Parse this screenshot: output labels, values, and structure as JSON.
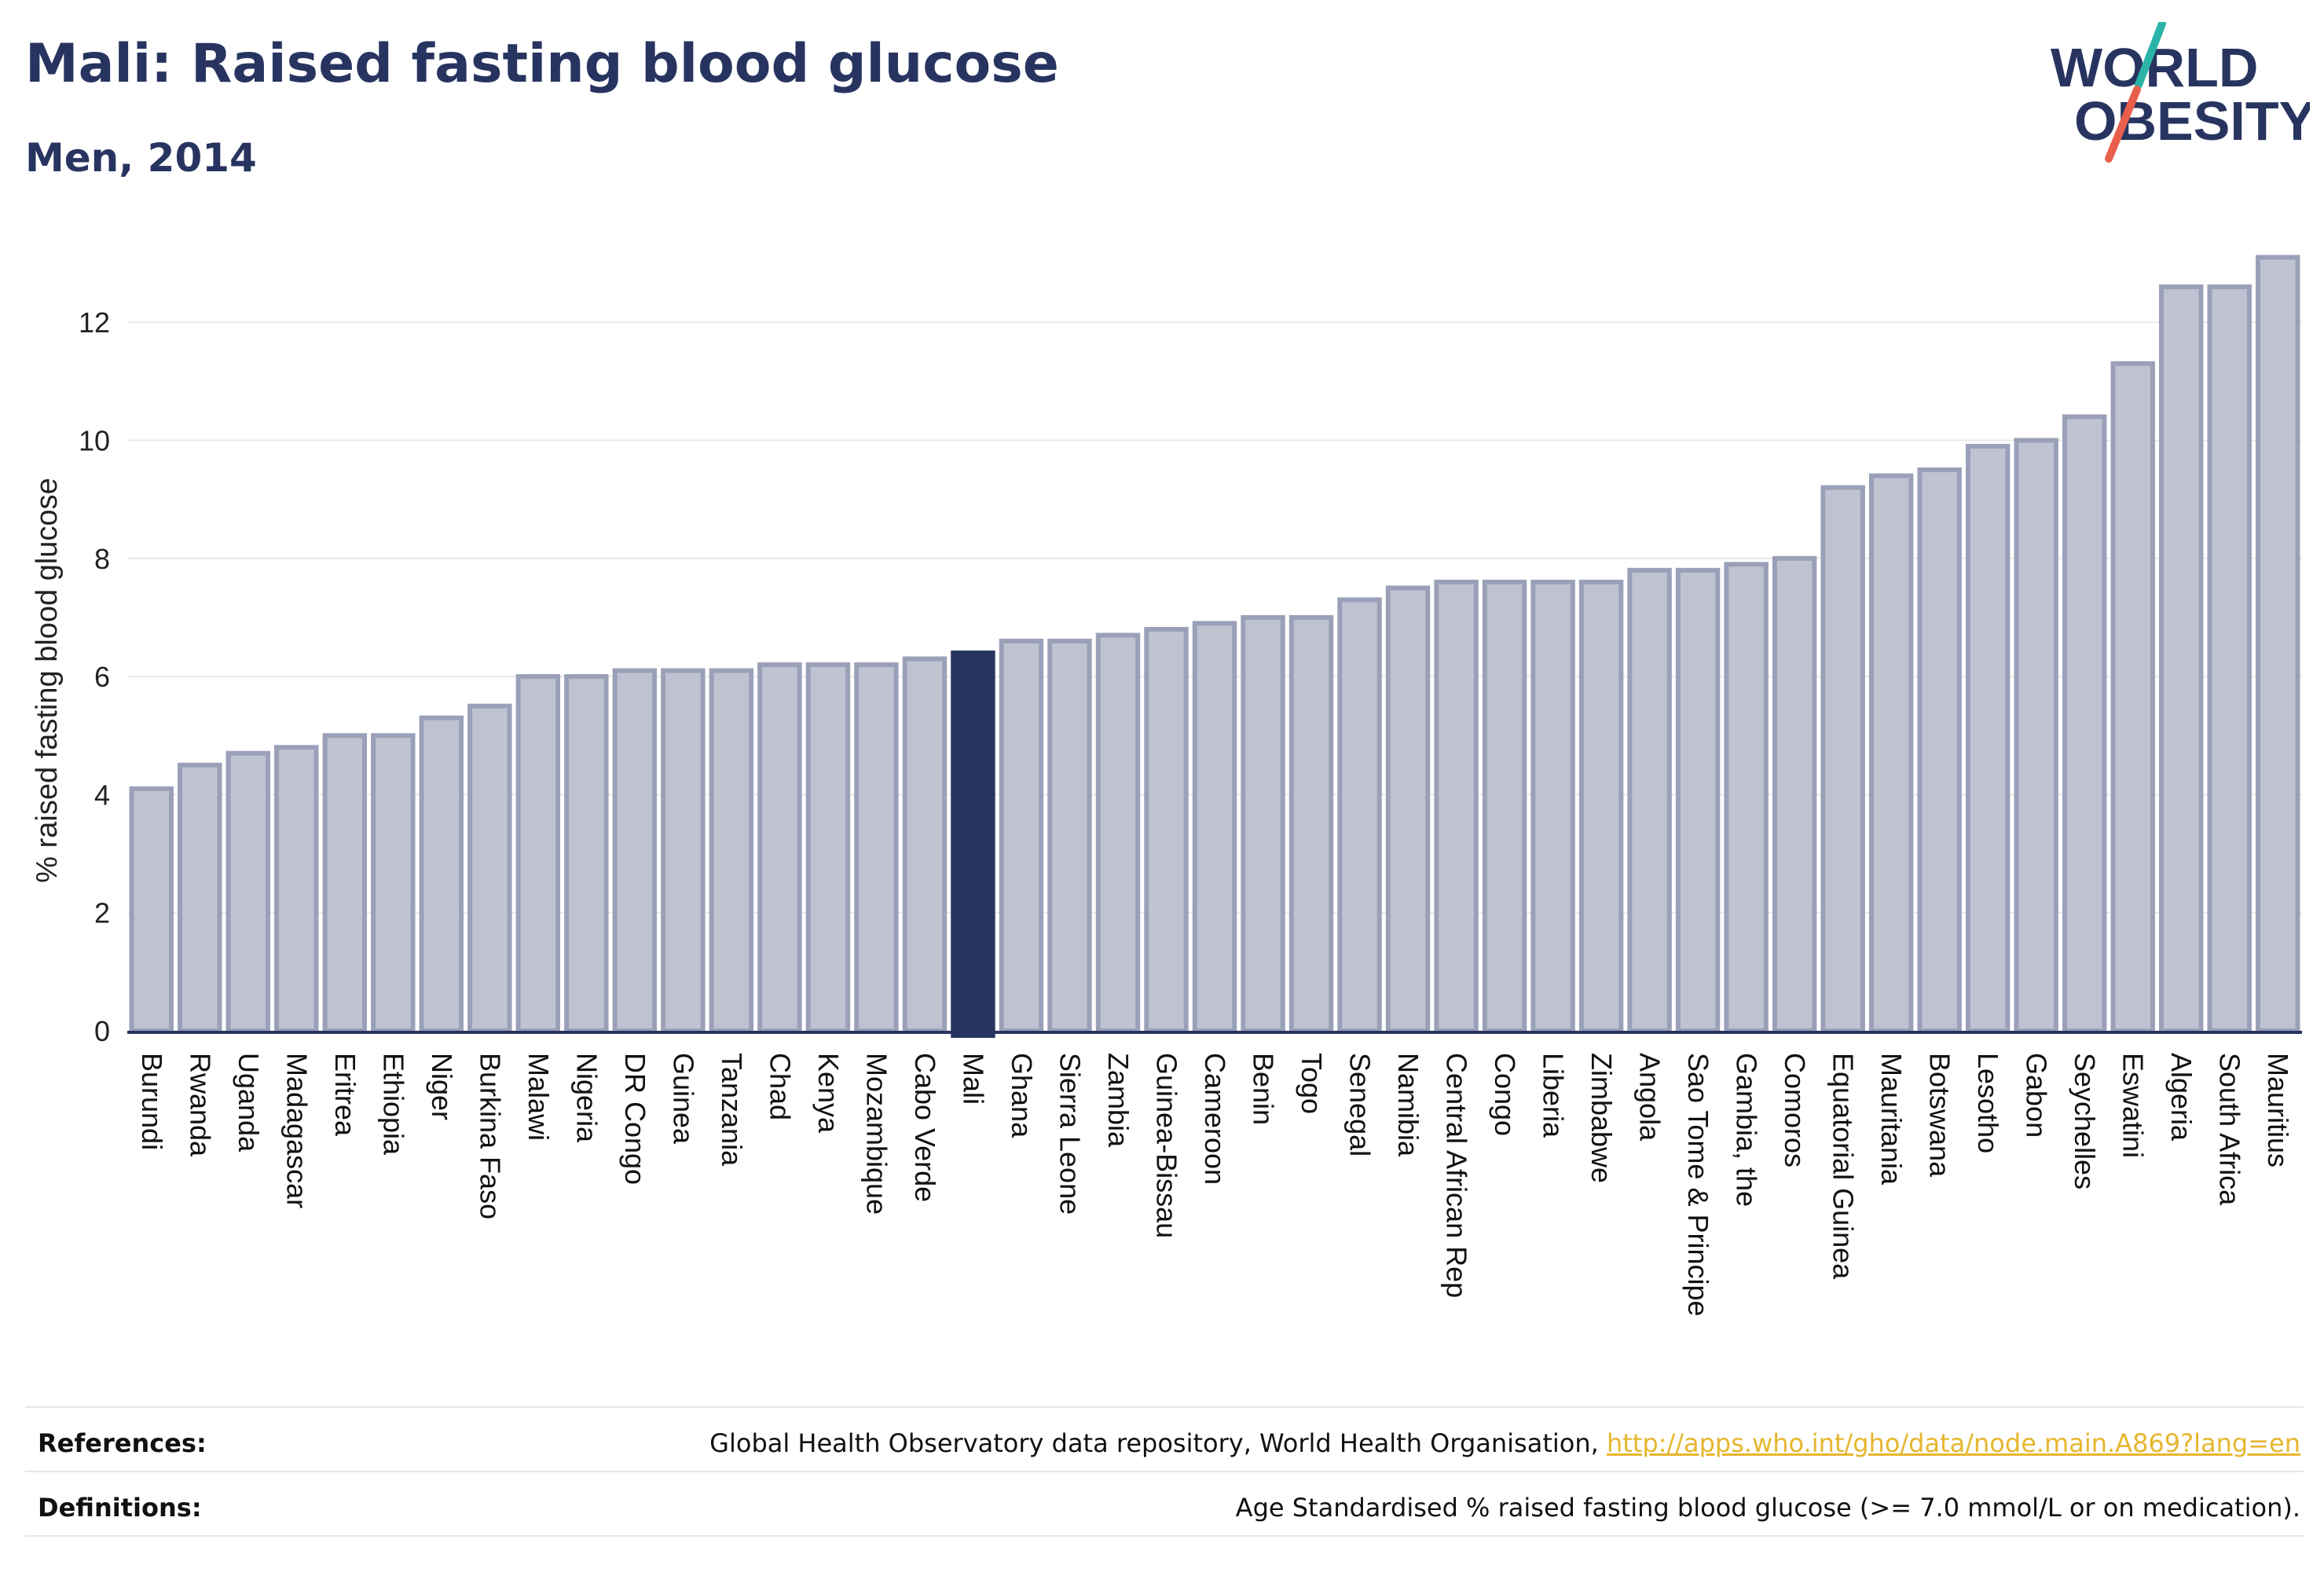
{
  "header": {
    "title": "Mali: Raised fasting blood glucose",
    "subtitle": "Men, 2014"
  },
  "logo": {
    "line1": "WORLD",
    "line2": "OBESITY",
    "accent_colors": [
      "#2bb3a8",
      "#e8604c"
    ],
    "text_color": "#283460"
  },
  "chart_data": {
    "type": "bar",
    "title": "Mali: Raised fasting blood glucose",
    "subtitle": "Men, 2014",
    "xlabel": "",
    "ylabel": "% raised fasting blood glucose",
    "ylim": [
      0,
      13.2
    ],
    "yticks": [
      0,
      2,
      4,
      6,
      8,
      10,
      12
    ],
    "grid": true,
    "highlight": "Mali",
    "colors": {
      "bar": "#bfc3d1",
      "bar_edge": "#9aa0b8",
      "highlight": "#283460"
    },
    "categories": [
      "Burundi",
      "Rwanda",
      "Uganda",
      "Madagascar",
      "Eritrea",
      "Ethiopia",
      "Niger",
      "Burkina Faso",
      "Malawi",
      "Nigeria",
      "DR Congo",
      "Guinea",
      "Tanzania",
      "Chad",
      "Kenya",
      "Mozambique",
      "Cabo Verde",
      "Mali",
      "Ghana",
      "Sierra Leone",
      "Zambia",
      "Guinea-Bissau",
      "Cameroon",
      "Benin",
      "Togo",
      "Senegal",
      "Namibia",
      "Central African Rep",
      "Congo",
      "Liberia",
      "Zimbabwe",
      "Angola",
      "Sao Tome & Principe",
      "Gambia, the",
      "Comoros",
      "Equatorial Guinea",
      "Mauritania",
      "Botswana",
      "Lesotho",
      "Gabon",
      "Seychelles",
      "Eswatini",
      "Algeria",
      "South Africa",
      "Mauritius"
    ],
    "values": [
      4.1,
      4.5,
      4.7,
      4.8,
      5.0,
      5.0,
      5.3,
      5.5,
      6.0,
      6.0,
      6.1,
      6.1,
      6.1,
      6.2,
      6.2,
      6.2,
      6.3,
      6.4,
      6.6,
      6.6,
      6.7,
      6.8,
      6.9,
      7.0,
      7.0,
      7.3,
      7.5,
      7.6,
      7.6,
      7.6,
      7.6,
      7.8,
      7.8,
      7.9,
      8.0,
      9.2,
      9.4,
      9.5,
      9.9,
      10.0,
      10.4,
      11.3,
      12.6,
      12.6,
      13.1
    ]
  },
  "footer": {
    "references_label": "References:",
    "references_text": "Global Health Observatory data repository, World Health Organisation, ",
    "references_link": "http://apps.who.int/gho/data/node.main.A869?lang=en",
    "definitions_label": "Definitions:",
    "definitions_text": "Age Standardised % raised fasting blood glucose (>= 7.0 mmol/L or on medication)."
  }
}
